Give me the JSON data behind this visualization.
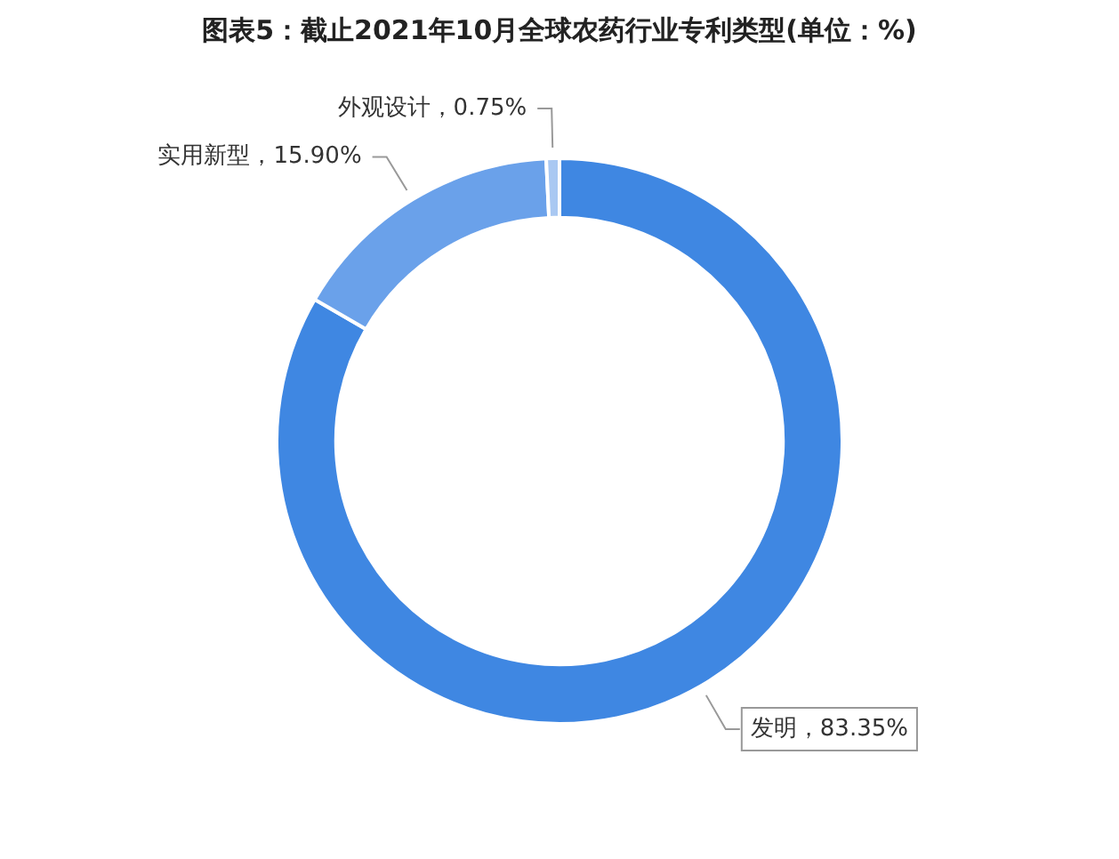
{
  "chart_data": {
    "type": "donut",
    "title": "图表5：截止2021年10月全球农药行业专利类型(单位：%)",
    "categories": [
      "发明",
      "实用新型",
      "外观设计"
    ],
    "values": [
      83.35,
      15.9,
      0.75
    ],
    "value_labels": [
      "83.35%",
      "15.90%",
      "0.75%"
    ],
    "colors": [
      "#3f87e2",
      "#6aa1ea",
      "#a9c8f2"
    ],
    "legend": false
  }
}
